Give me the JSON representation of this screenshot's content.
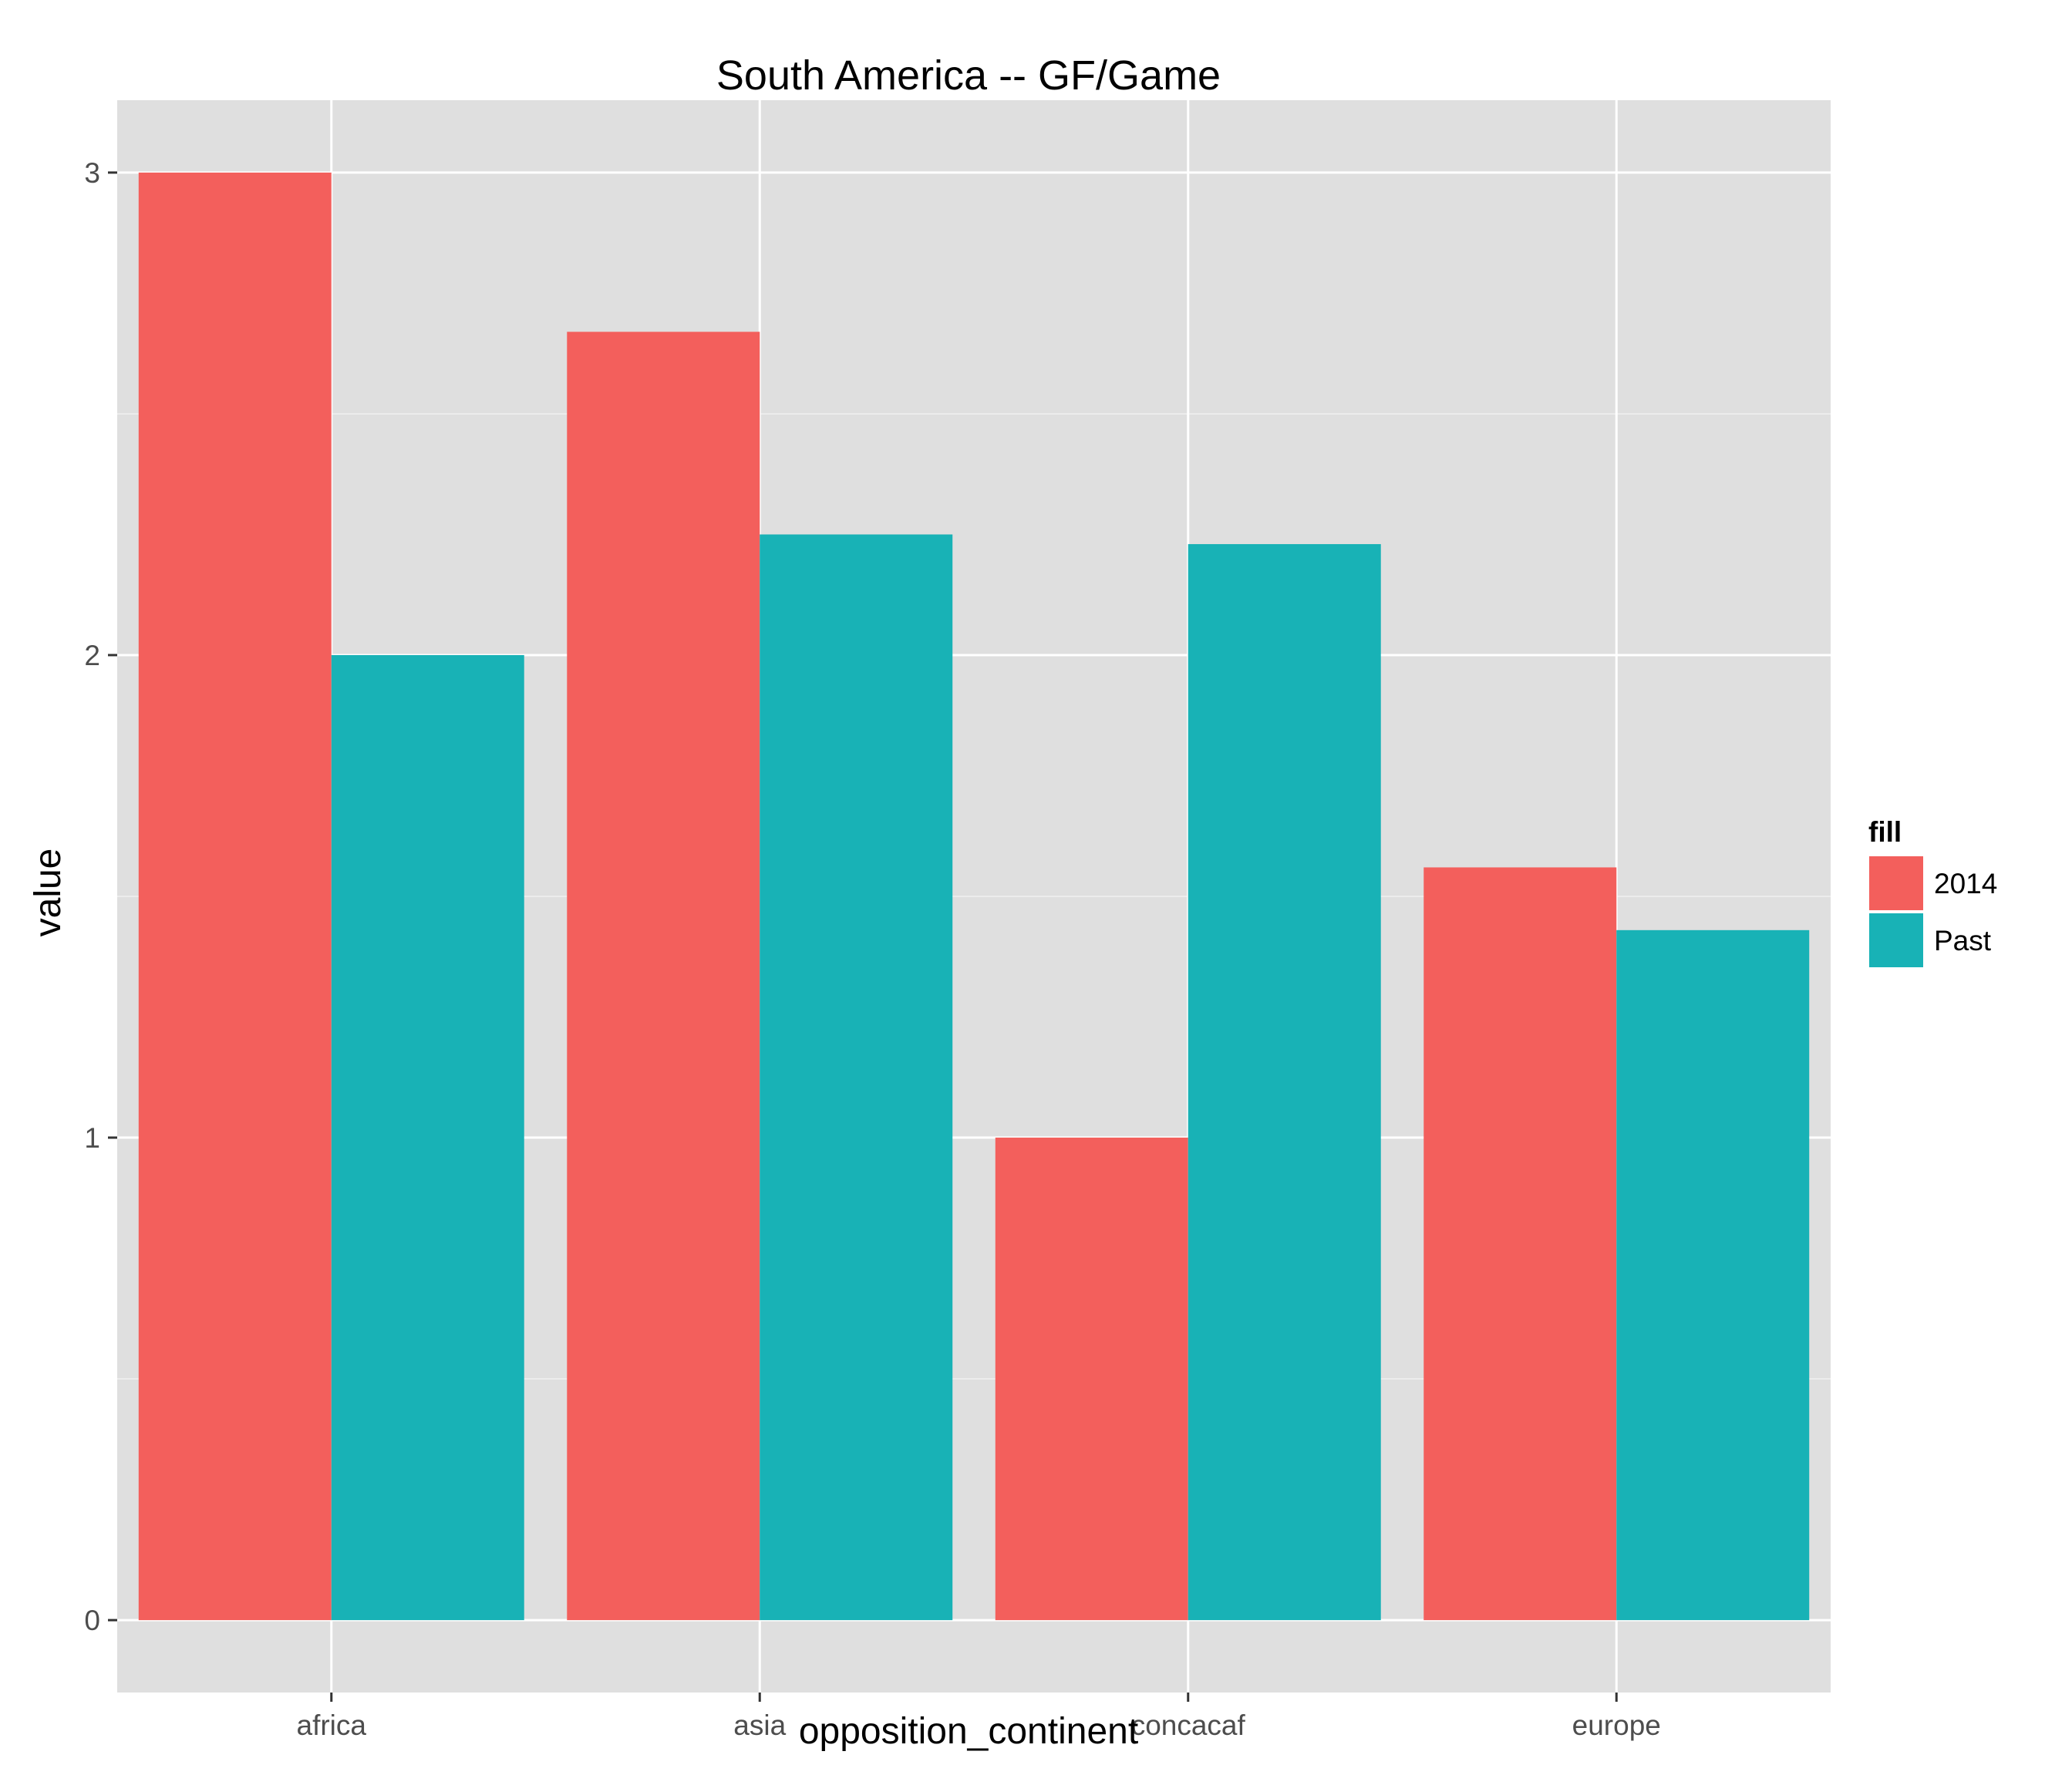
{
  "chart_data": {
    "type": "bar",
    "title": "South America -- GF/Game",
    "xlabel": "opposition_continent",
    "ylabel": "value",
    "categories": [
      "africa",
      "asia",
      "concacaf",
      "europe"
    ],
    "series": [
      {
        "name": "2014",
        "color": "#F35F5C",
        "values": [
          3.0,
          2.67,
          1.0,
          1.56
        ]
      },
      {
        "name": "Past",
        "color": "#18B2B6",
        "values": [
          2.0,
          2.25,
          2.23,
          1.43
        ]
      }
    ],
    "ylim": [
      -0.15,
      3.15
    ],
    "yticks": [
      0,
      1,
      2,
      3
    ],
    "ytick_labels": [
      "0",
      "1",
      "2",
      "3"
    ],
    "grid": true,
    "legend": {
      "title": "fill",
      "placement": "right"
    },
    "colors": {
      "panel_background": "#DFDFDF",
      "grid_line": "#FFFFFF",
      "tick_text": "#4D4D4D"
    }
  }
}
